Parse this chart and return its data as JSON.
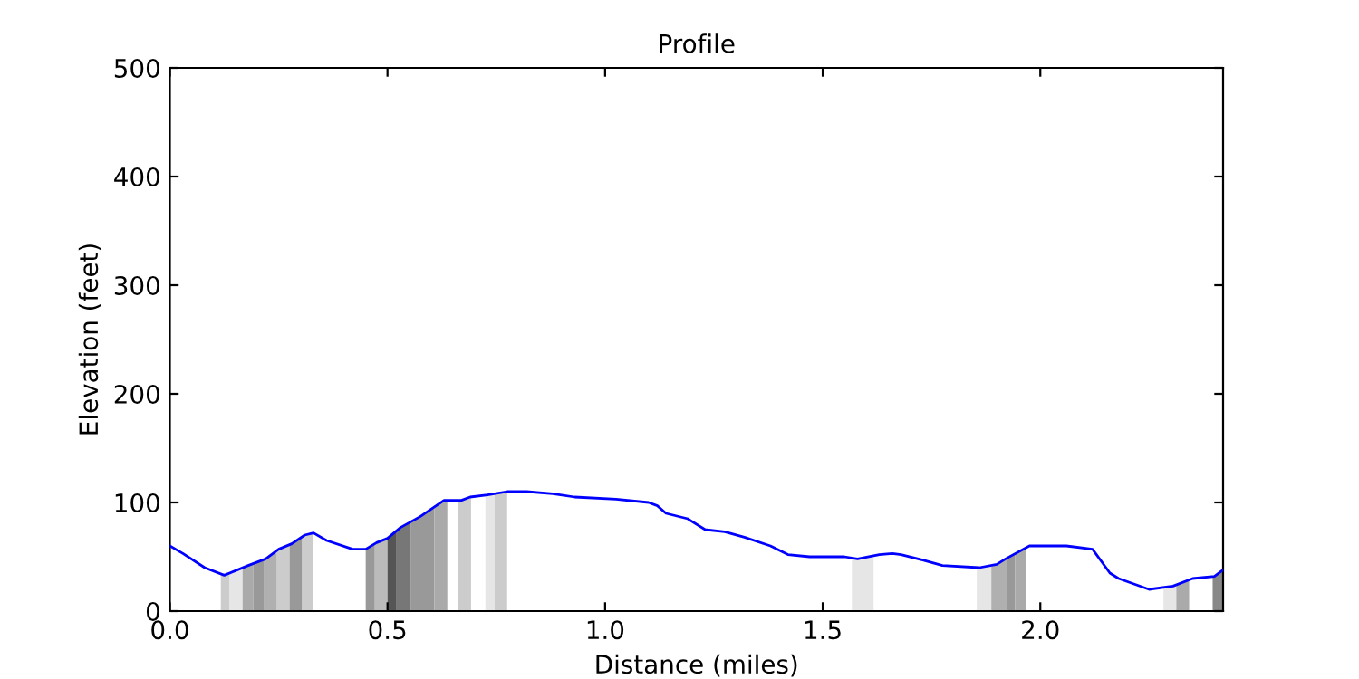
{
  "chart_data": {
    "type": "line",
    "title": "Profile",
    "xlabel": "Distance (miles)",
    "ylabel": "Elevation (feet)",
    "series": [
      {
        "color": "#0000ff",
        "x": [
          0,
          0.03,
          0.08,
          0.125,
          0.18,
          0.22,
          0.25,
          0.28,
          0.31,
          0.33,
          0.36,
          0.42,
          0.45,
          0.475,
          0.5,
          0.53,
          0.575,
          0.63,
          0.67,
          0.69,
          0.73,
          0.775,
          0.82,
          0.88,
          0.93,
          1.025,
          1.1,
          1.12,
          1.14,
          1.19,
          1.23,
          1.275,
          1.32,
          1.38,
          1.42,
          1.47,
          1.55,
          1.58,
          1.63,
          1.66,
          1.68,
          1.73,
          1.775,
          1.86,
          1.9,
          1.92,
          1.975,
          2.06,
          2.12,
          2.16,
          2.18,
          2.25,
          2.305,
          2.35,
          2.4,
          2.42
        ],
        "values": [
          60,
          53,
          40,
          33,
          42,
          48,
          57,
          62,
          70,
          72,
          65,
          57,
          57,
          63,
          67,
          77,
          87,
          102,
          102,
          105,
          107,
          110,
          110,
          108,
          105,
          103,
          100,
          97,
          90,
          85,
          75,
          73,
          68,
          60,
          52,
          50,
          50,
          48,
          52,
          53,
          52,
          47,
          42,
          40,
          43,
          48,
          60,
          60,
          57,
          35,
          30,
          20,
          23,
          30,
          32,
          38
        ]
      }
    ],
    "bands": [
      {
        "axis": "x",
        "from": 0.117,
        "to": 0.1375,
        "color": "#cccccc"
      },
      {
        "axis": "x",
        "from": 0.1375,
        "to": 0.167,
        "color": "#e6e6e6"
      },
      {
        "axis": "x",
        "from": 0.167,
        "to": 0.192,
        "color": "#aaaaaa"
      },
      {
        "axis": "x",
        "from": 0.192,
        "to": 0.217,
        "color": "#999999"
      },
      {
        "axis": "x",
        "from": 0.217,
        "to": 0.246,
        "color": "#b0b0b0"
      },
      {
        "axis": "x",
        "from": 0.246,
        "to": 0.275,
        "color": "#cccccc"
      },
      {
        "axis": "x",
        "from": 0.275,
        "to": 0.304,
        "color": "#999999"
      },
      {
        "axis": "x",
        "from": 0.304,
        "to": 0.329,
        "color": "#cccccc"
      },
      {
        "axis": "x",
        "from": 0.45,
        "to": 0.471,
        "color": "#999999"
      },
      {
        "axis": "x",
        "from": 0.471,
        "to": 0.5,
        "color": "#bbbbbb"
      },
      {
        "axis": "x",
        "from": 0.5,
        "to": 0.521,
        "color": "#555555"
      },
      {
        "axis": "x",
        "from": 0.521,
        "to": 0.554,
        "color": "#777777"
      },
      {
        "axis": "x",
        "from": 0.554,
        "to": 0.608,
        "color": "#999999"
      },
      {
        "axis": "x",
        "from": 0.608,
        "to": 0.6375,
        "color": "#aaaaaa"
      },
      {
        "axis": "x",
        "from": 0.6625,
        "to": 0.692,
        "color": "#cccccc"
      },
      {
        "axis": "x",
        "from": 0.725,
        "to": 0.746,
        "color": "#e6e6e6"
      },
      {
        "axis": "x",
        "from": 0.746,
        "to": 0.775,
        "color": "#cccccc"
      },
      {
        "axis": "x",
        "from": 1.567,
        "to": 1.617,
        "color": "#e6e6e6"
      },
      {
        "axis": "x",
        "from": 1.854,
        "to": 1.8875,
        "color": "#e6e6e6"
      },
      {
        "axis": "x",
        "from": 1.8875,
        "to": 1.921,
        "color": "#b0b0b0"
      },
      {
        "axis": "x",
        "from": 1.921,
        "to": 1.942,
        "color": "#999999"
      },
      {
        "axis": "x",
        "from": 1.942,
        "to": 1.967,
        "color": "#aaaaaa"
      },
      {
        "axis": "x",
        "from": 2.283,
        "to": 2.3125,
        "color": "#e6e6e6"
      },
      {
        "axis": "x",
        "from": 2.3125,
        "to": 2.342,
        "color": "#aaaaaa"
      },
      {
        "axis": "x",
        "from": 2.396,
        "to": 2.42,
        "color": "#888888"
      }
    ],
    "xlim": [
      0,
      2.42
    ],
    "ylim": [
      0,
      500
    ],
    "xticks": [
      {
        "value": 0,
        "label": "0.0"
      },
      {
        "value": 0.5,
        "label": "0.5"
      },
      {
        "value": 1,
        "label": "1.0"
      },
      {
        "value": 1.5,
        "label": "1.5"
      },
      {
        "value": 2,
        "label": "2.0"
      }
    ],
    "yticks": [
      0,
      100,
      200,
      300,
      400,
      500
    ],
    "grid": false,
    "marker": "none",
    "line_style": "solid"
  }
}
